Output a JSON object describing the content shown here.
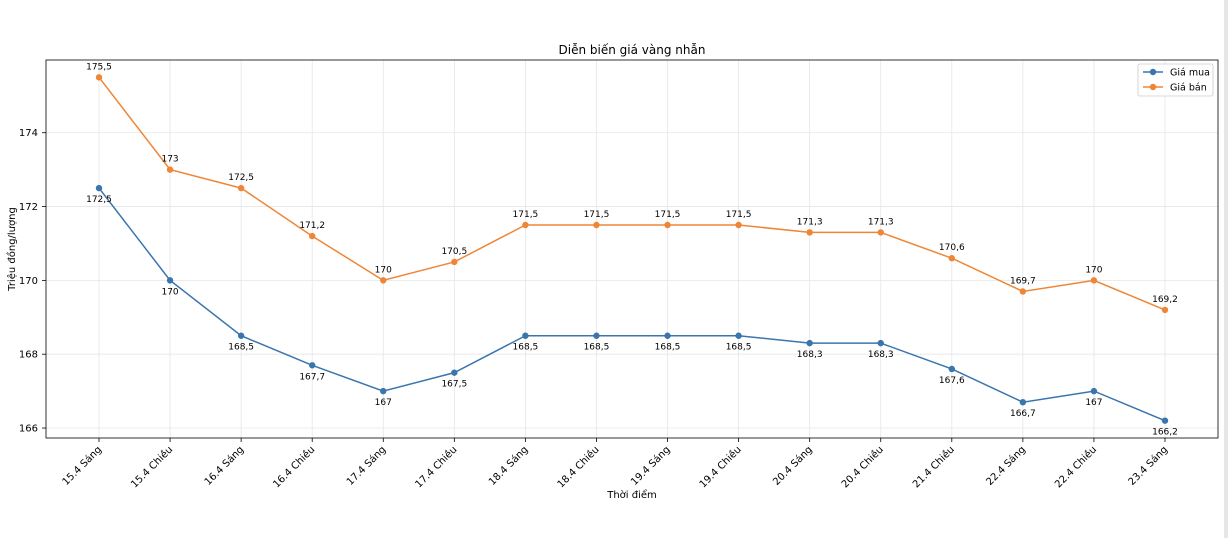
{
  "chart_data": {
    "type": "line",
    "title": "Diễn biến giá vàng nhẫn",
    "xlabel": "Thời điểm",
    "ylabel": "Triệu đồng/lượng",
    "categories": [
      "15.4 Sáng",
      "15.4 Chiều",
      "16.4 Sáng",
      "16.4 Chiều",
      "17.4 Sáng",
      "17.4 Chiều",
      "18.4 Sáng",
      "18.4 Chiều",
      "19.4 Sáng",
      "19.4 Chiều",
      "20.4 Sáng",
      "20.4 Chiều",
      "21.4 Chiều",
      "22.4 Sáng",
      "22.4 Chiều",
      "23.4 Sáng"
    ],
    "series": [
      {
        "name": "Giá mua",
        "color": "#3a75ae",
        "values": [
          172.5,
          170,
          168.5,
          167.7,
          167,
          167.5,
          168.5,
          168.5,
          168.5,
          168.5,
          168.3,
          168.3,
          167.6,
          166.7,
          167,
          166.2
        ],
        "labels": [
          "172,5",
          "170",
          "168,5",
          "167,7",
          "167",
          "167,5",
          "168,5",
          "168,5",
          "168,5",
          "168,5",
          "168,3",
          "168,3",
          "167,6",
          "166,7",
          "167",
          "166,2"
        ]
      },
      {
        "name": "Giá bán",
        "color": "#ef8636",
        "values": [
          175.5,
          173,
          172.5,
          171.2,
          170,
          170.5,
          171.5,
          171.5,
          171.5,
          171.5,
          171.3,
          171.3,
          170.6,
          169.7,
          170,
          169.2
        ],
        "labels": [
          "175,5",
          "173",
          "172,5",
          "171,2",
          "170",
          "170,5",
          "171,5",
          "171,5",
          "171,5",
          "171,5",
          "171,3",
          "171,3",
          "170,6",
          "169,7",
          "170",
          "169,2"
        ]
      }
    ],
    "yticks": [
      166,
      168,
      170,
      172,
      174
    ],
    "ytick_labels": [
      "166",
      "168",
      "170",
      "172",
      "174"
    ],
    "ylim": [
      165.73,
      175.97
    ],
    "grid": true,
    "legend": "top-right"
  }
}
